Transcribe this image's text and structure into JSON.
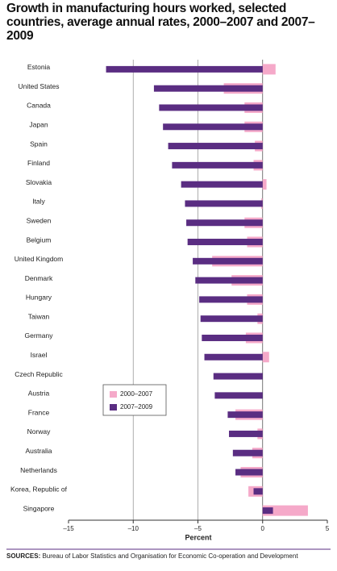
{
  "chart_data": {
    "type": "hbar",
    "title": "Growth in manufacturing hours worked, selected countries, average annual rates, 2000–2007 and 2007–2009",
    "categories": [
      "Estonia",
      "United States",
      "Canada",
      "Japan",
      "Spain",
      "Finland",
      "Slovakia",
      "Italy",
      "Sweden",
      "Belgium",
      "United Kingdom",
      "Denmark",
      "Hungary",
      "Taiwan",
      "Germany",
      "Israel",
      "Czech Republic",
      "Austria",
      "France",
      "Norway",
      "Australia",
      "Netherlands",
      "Korea, Republic of",
      "Singapore"
    ],
    "series": [
      {
        "name": "2000–2007",
        "color": "#f5a9c9",
        "values": [
          1.0,
          -3.0,
          -1.4,
          -1.4,
          -0.6,
          -0.7,
          0.3,
          -0.1,
          -1.4,
          -1.2,
          -3.9,
          -2.4,
          -1.2,
          -0.4,
          -1.3,
          0.5,
          0,
          0,
          -2.1,
          -0.4,
          -0.8,
          -1.7,
          -1.1,
          3.5
        ]
      },
      {
        "name": "2007–2009",
        "color": "#5a2d82",
        "values": [
          -12.1,
          -8.4,
          -8.0,
          -7.7,
          -7.3,
          -7.0,
          -6.3,
          -6.0,
          -5.9,
          -5.8,
          -5.4,
          -5.2,
          -4.9,
          -4.8,
          -4.7,
          -4.5,
          -3.8,
          -3.7,
          -2.7,
          -2.6,
          -2.3,
          -2.1,
          -0.7,
          0.8
        ]
      }
    ],
    "xlim": [
      -15,
      5
    ],
    "xticks": [
      {
        "value": -15,
        "label": "–15"
      },
      {
        "value": -10,
        "label": "–10"
      },
      {
        "value": -5,
        "label": "–5"
      },
      0,
      5
    ],
    "xlabel": "Percent",
    "grid": true,
    "source_label": "SOURCES:",
    "source_text": "Bureau of Labor Statistics and Organisation for Economic Co-operation and Development"
  }
}
